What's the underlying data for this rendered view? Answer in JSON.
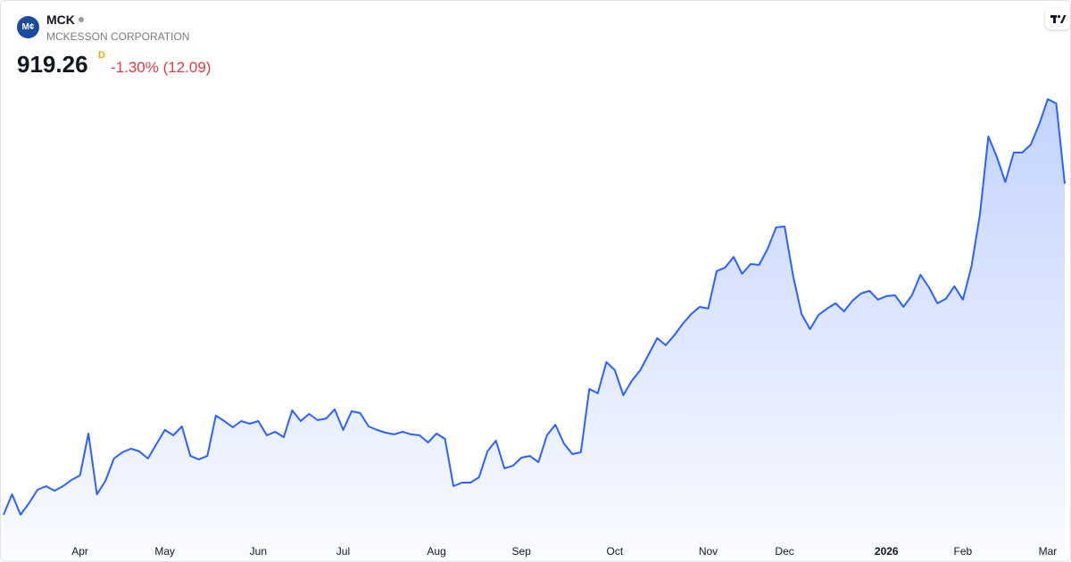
{
  "header": {
    "logo": "M¢",
    "symbol": "MCK",
    "name": "MCKESSON CORPORATION",
    "price": "919.26",
    "interval": "D",
    "change": "-1.30% (12.09)"
  },
  "chart_data": {
    "type": "area",
    "color": "#2962ff",
    "categories": [
      null,
      null,
      null,
      null,
      null,
      null,
      null,
      null,
      null,
      "Apr",
      null,
      null,
      null,
      null,
      null,
      null,
      null,
      null,
      null,
      "May",
      null,
      null,
      null,
      null,
      null,
      null,
      null,
      null,
      null,
      null,
      "Jun",
      null,
      null,
      null,
      null,
      null,
      null,
      null,
      null,
      null,
      "Jul",
      null,
      null,
      null,
      null,
      null,
      null,
      null,
      null,
      null,
      null,
      "Aug",
      null,
      null,
      null,
      null,
      null,
      null,
      null,
      null,
      null,
      "Sep",
      null,
      null,
      null,
      null,
      null,
      null,
      null,
      null,
      null,
      null,
      "Oct",
      null,
      null,
      null,
      null,
      null,
      null,
      null,
      null,
      null,
      null,
      "Nov",
      null,
      null,
      null,
      null,
      null,
      null,
      null,
      null,
      "Dec",
      null,
      null,
      null,
      null,
      null,
      null,
      null,
      null,
      null,
      null,
      null,
      "2026",
      null,
      null,
      null,
      null,
      null,
      null,
      null,
      null,
      "Feb",
      null,
      null,
      null,
      null,
      null,
      null,
      null,
      null,
      null,
      "Mar",
      null,
      null
    ],
    "values": [
      670.1,
      685.5,
      670.1,
      678.8,
      688.9,
      691.6,
      688.2,
      691.6,
      696.3,
      699.7,
      731.2,
      685.5,
      695.6,
      712.4,
      717.1,
      719.8,
      717.8,
      712.4,
      723.2,
      733.9,
      729.9,
      736.6,
      714.4,
      711.7,
      714.4,
      744.7,
      740.6,
      735.9,
      740.6,
      738.6,
      740.6,
      729.9,
      732.6,
      728.5,
      748.7,
      740.6,
      746.0,
      741.3,
      742.6,
      749.4,
      733.9,
      748.0,
      746.7,
      736.6,
      733.9,
      731.9,
      730.6,
      732.6,
      730.6,
      729.9,
      724.5,
      731.2,
      727.2,
      691.6,
      694.3,
      694.3,
      698.3,
      717.8,
      725.9,
      705.0,
      707.0,
      713.1,
      714.4,
      709.7,
      729.9,
      737.9,
      723.8,
      715.8,
      717.1,
      764.8,
      761.5,
      785.0,
      778.9,
      760.1,
      770.9,
      778.9,
      791.0,
      803.1,
      797.7,
      805.1,
      813.8,
      821.2,
      826.6,
      825.3,
      853.5,
      856.2,
      864.2,
      851.5,
      858.8,
      858.2,
      870.3,
      886.4,
      887.1,
      850.1,
      821.2,
      809.8,
      820.6,
      825.3,
      829.3,
      823.2,
      831.3,
      836.7,
      838.7,
      832.0,
      834.7,
      835.3,
      826.6,
      835.3,
      850.8,
      841.4,
      829.3,
      832.7,
      842.1,
      832.0,
      856.8,
      895.8,
      954.9,
      939.4,
      920.6,
      942.8,
      942.8,
      948.8,
      964.3,
      983.0,
      979.7,
      919.26
    ],
    "ylim": [
      654,
      996.5
    ]
  }
}
